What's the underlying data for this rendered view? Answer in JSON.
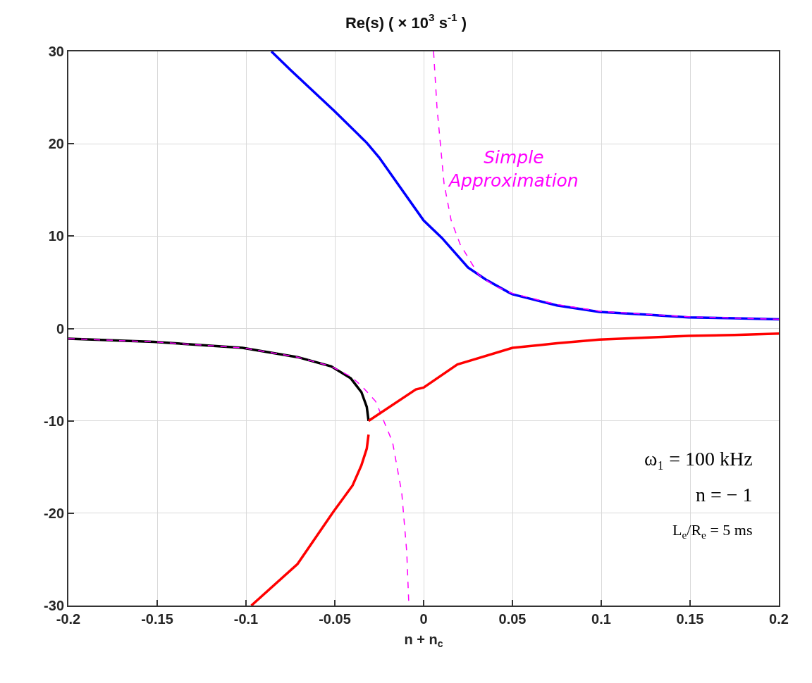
{
  "chart_data": {
    "type": "line",
    "title": "Re(s) ( × 10$^{3}$ s$^{-1}$ )",
    "xlabel": "n + n$_{c}$",
    "series": [
      {
        "color": "#0000ff",
        "x": [
          -0.0857,
          -0.075,
          -0.05,
          -0.032,
          -0.025,
          0.0,
          0.0103,
          0.025,
          0.035,
          0.048,
          0.05,
          0.075,
          0.099,
          0.125,
          0.149,
          0.175,
          0.2
        ],
        "values": [
          30,
          28.0,
          23.5,
          20.1,
          18.5,
          11.7,
          9.8,
          6.6,
          5.3,
          3.9,
          3.7,
          2.5,
          1.8,
          1.5,
          1.2,
          1.1,
          1.0
        ]
      },
      {
        "color": "#ff00ff",
        "line_style": "dashed",
        "x": [
          0.0056,
          0.0075,
          0.0115,
          0.0155,
          0.0206,
          0.031,
          0.04,
          0.05,
          0.075,
          0.1,
          0.15,
          0.2
        ],
        "values": [
          30,
          24,
          15.7,
          11.7,
          9.1,
          5.8,
          4.6,
          3.8,
          2.6,
          1.85,
          1.25,
          1.0
        ]
      },
      {
        "color": "#000000",
        "x": [
          -0.2,
          -0.152,
          -0.102,
          -0.071,
          -0.052,
          -0.041,
          -0.035,
          -0.032,
          -0.031
        ],
        "values": [
          -1.1,
          -1.45,
          -2.1,
          -3.1,
          -4.1,
          -5.4,
          -6.9,
          -8.5,
          -10.0
        ]
      },
      {
        "color": "#ff00ff",
        "line_style": "dashed",
        "x": [
          -0.2,
          -0.152,
          -0.102,
          -0.071,
          -0.052,
          -0.041,
          -0.035,
          -0.027,
          -0.0175,
          -0.0123,
          -0.0095,
          -0.0083
        ],
        "values": [
          -1.1,
          -1.45,
          -2.1,
          -3.1,
          -4.1,
          -5.2,
          -6.2,
          -7.9,
          -12.3,
          -17.8,
          -24.2,
          -30
        ]
      },
      {
        "color": "#ff0000",
        "x": [
          -0.097,
          -0.071,
          -0.051,
          -0.04,
          -0.035,
          -0.032,
          -0.031
        ],
        "values": [
          -30,
          -25.5,
          -19.9,
          -17.0,
          -14.8,
          -13.0,
          -11.5
        ]
      },
      {
        "color": "#ff0000",
        "x": [
          -0.031,
          -0.0044,
          0.0,
          0.019,
          0.05,
          0.075,
          0.099,
          0.125,
          0.149,
          0.175,
          0.2
        ],
        "values": [
          -10.0,
          -6.6,
          -6.4,
          -3.9,
          -2.1,
          -1.6,
          -1.2,
          -1.0,
          -0.8,
          -0.7,
          -0.55
        ]
      }
    ],
    "annotations": [
      "Simple Approximation",
      "ω₁ = 100 kHz",
      "n = − 1",
      "L$_{e}$/R$_{e}$ = 5 ms"
    ],
    "xlim": [
      -0.2,
      0.2
    ],
    "xticks": [
      -0.2,
      -0.15,
      -0.1,
      -0.05,
      0,
      0.05,
      0.1,
      0.15,
      0.2
    ],
    "ylim": [
      -30,
      30
    ],
    "yticks": [
      -30,
      -20,
      -10,
      0,
      10,
      20,
      30
    ],
    "grid": true
  }
}
